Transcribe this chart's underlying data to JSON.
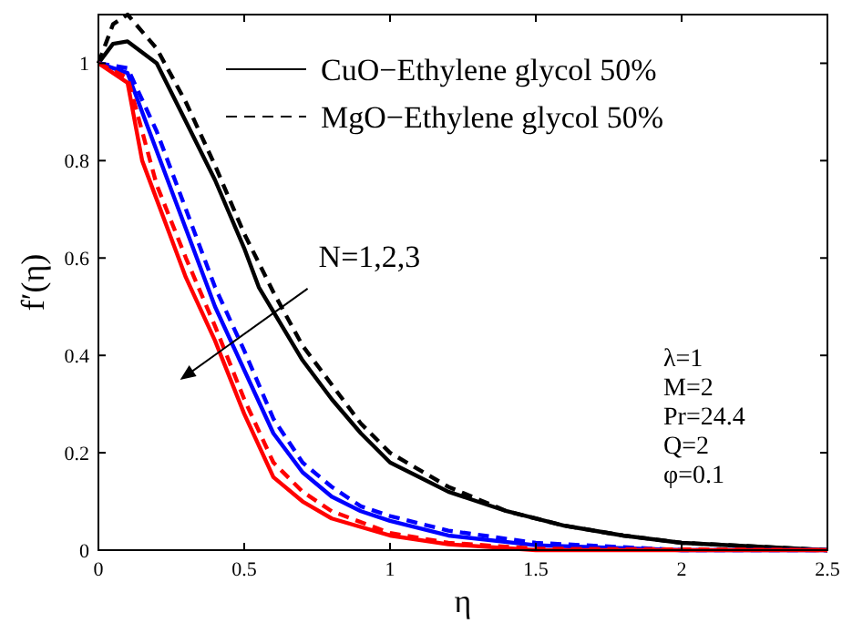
{
  "chart_data": {
    "type": "line",
    "xlabel": "η",
    "ylabel": "f′(η)",
    "xlim": [
      0,
      2.5
    ],
    "ylim": [
      0,
      1.1
    ],
    "xticks": [
      0,
      0.5,
      1,
      1.5,
      2,
      2.5
    ],
    "yticks": [
      0,
      0.2,
      0.4,
      0.6,
      0.8,
      1
    ],
    "grid": false,
    "legend": "top",
    "series": [
      {
        "name": "CuO−Ethylene glycol 50%",
        "color": "#000000",
        "line_style": "solid",
        "x": [
          0,
          0.05,
          0.1,
          0.2,
          0.3,
          0.4,
          0.5,
          0.55,
          0.6,
          0.7,
          0.8,
          0.9,
          1.0,
          1.1,
          1.2,
          1.4,
          1.6,
          1.8,
          2.0,
          2.5
        ],
        "values": [
          1,
          1.04,
          1.045,
          1.0,
          0.88,
          0.76,
          0.62,
          0.54,
          0.49,
          0.39,
          0.31,
          0.24,
          0.18,
          0.15,
          0.12,
          0.08,
          0.05,
          0.03,
          0.015,
          0
        ]
      },
      {
        "name": "MgO−Ethylene glycol 50%",
        "color": "#000000",
        "line_style": "dashed",
        "x": [
          0,
          0.05,
          0.1,
          0.2,
          0.3,
          0.4,
          0.5,
          0.6,
          0.7,
          0.8,
          0.9,
          1.0,
          1.2,
          1.4,
          1.6,
          1.8,
          2.0,
          2.5
        ],
        "values": [
          1,
          1.08,
          1.1,
          1.03,
          0.92,
          0.79,
          0.65,
          0.53,
          0.42,
          0.34,
          0.26,
          0.2,
          0.13,
          0.08,
          0.05,
          0.03,
          0.015,
          0
        ]
      },
      {
        "color": "#0000ff",
        "line_style": "solid",
        "x": [
          0,
          0.1,
          0.2,
          0.3,
          0.4,
          0.5,
          0.6,
          0.7,
          0.8,
          0.9,
          1.0,
          1.2,
          1.5,
          2.0,
          2.5
        ],
        "values": [
          1,
          0.98,
          0.82,
          0.66,
          0.5,
          0.37,
          0.24,
          0.16,
          0.11,
          0.08,
          0.06,
          0.03,
          0.01,
          0,
          0
        ]
      },
      {
        "color": "#0000ff",
        "line_style": "dashed",
        "x": [
          0,
          0.1,
          0.2,
          0.3,
          0.4,
          0.5,
          0.6,
          0.7,
          0.8,
          0.9,
          1.0,
          1.2,
          1.5,
          2.0,
          2.5
        ],
        "values": [
          1,
          0.99,
          0.86,
          0.7,
          0.54,
          0.41,
          0.27,
          0.18,
          0.13,
          0.09,
          0.07,
          0.04,
          0.015,
          0,
          0
        ]
      },
      {
        "color": "#ff0000",
        "line_style": "solid",
        "x": [
          0,
          0.1,
          0.15,
          0.2,
          0.3,
          0.4,
          0.5,
          0.6,
          0.7,
          0.8,
          1.0,
          1.2,
          1.5,
          2.5
        ],
        "values": [
          1,
          0.96,
          0.8,
          0.72,
          0.56,
          0.43,
          0.28,
          0.15,
          0.1,
          0.065,
          0.03,
          0.012,
          0,
          0
        ]
      },
      {
        "color": "#ff0000",
        "line_style": "dashed",
        "x": [
          0,
          0.1,
          0.2,
          0.3,
          0.4,
          0.5,
          0.6,
          0.7,
          0.8,
          1.0,
          1.2,
          1.5,
          2.5
        ],
        "values": [
          1,
          0.97,
          0.75,
          0.6,
          0.46,
          0.31,
          0.18,
          0.12,
          0.08,
          0.035,
          0.015,
          0.003,
          0
        ]
      }
    ],
    "annotations": [
      "N=1,2,3",
      "λ=1",
      "M=2",
      "Pr=24.4",
      "Q=2",
      "φ=0.1"
    ]
  }
}
